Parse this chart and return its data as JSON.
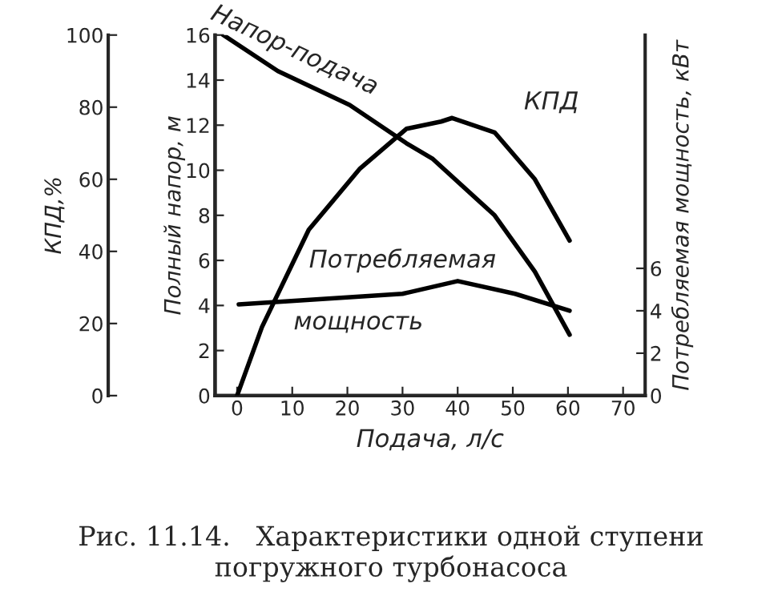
{
  "chart_data": {
    "type": "line",
    "xlabel": "Подача, л/с",
    "ylabel": "Полный напор, м",
    "y2label": "Потребляемая мощность, кВт",
    "y3label": "КПД,%",
    "xlim": [
      -4,
      74
    ],
    "xticks": [
      0,
      10,
      20,
      30,
      40,
      50,
      60,
      70
    ],
    "ylim": [
      0,
      16
    ],
    "yticks": [
      0,
      2,
      4,
      6,
      8,
      10,
      12,
      14,
      16
    ],
    "y2lim": [
      0,
      17
    ],
    "y2ticks": [
      0,
      2,
      4,
      6
    ],
    "y3lim": [
      0,
      100
    ],
    "y3ticks": [
      0,
      20,
      40,
      60,
      80,
      100
    ],
    "grid": false,
    "legend": false,
    "marker": "none",
    "line_style": "solid",
    "series": [
      {
        "name": "Напор-подача",
        "color": "#000000",
        "x": [
          -2.5,
          7.4,
          20.4,
          30.7,
          35.5,
          46.7,
          54,
          60.3
        ],
        "values": [
          16,
          14.4,
          12.9,
          11.2,
          10.5,
          8.0,
          5.5,
          2.7
        ]
      },
      {
        "name": "КПД",
        "color": "#000000",
        "axis": "y3",
        "x": [
          0,
          4.5,
          13,
          22.3,
          30.7,
          37,
          39,
          46.7,
          54,
          60.3
        ],
        "values": [
          0,
          19,
          46,
          63,
          74,
          76,
          77,
          73,
          60,
          43
        ]
      },
      {
        "name": "Потребляемая мощность",
        "color": "#000000",
        "axis": "y2",
        "x": [
          0.3,
          30,
          40,
          50.4,
          60.3
        ],
        "values": [
          4.3,
          4.8,
          5.4,
          4.8,
          4.0
        ]
      }
    ],
    "annotations": [
      "Рис. 11.14.   Характеристики одной ступени погружного турбонасоса"
    ]
  }
}
